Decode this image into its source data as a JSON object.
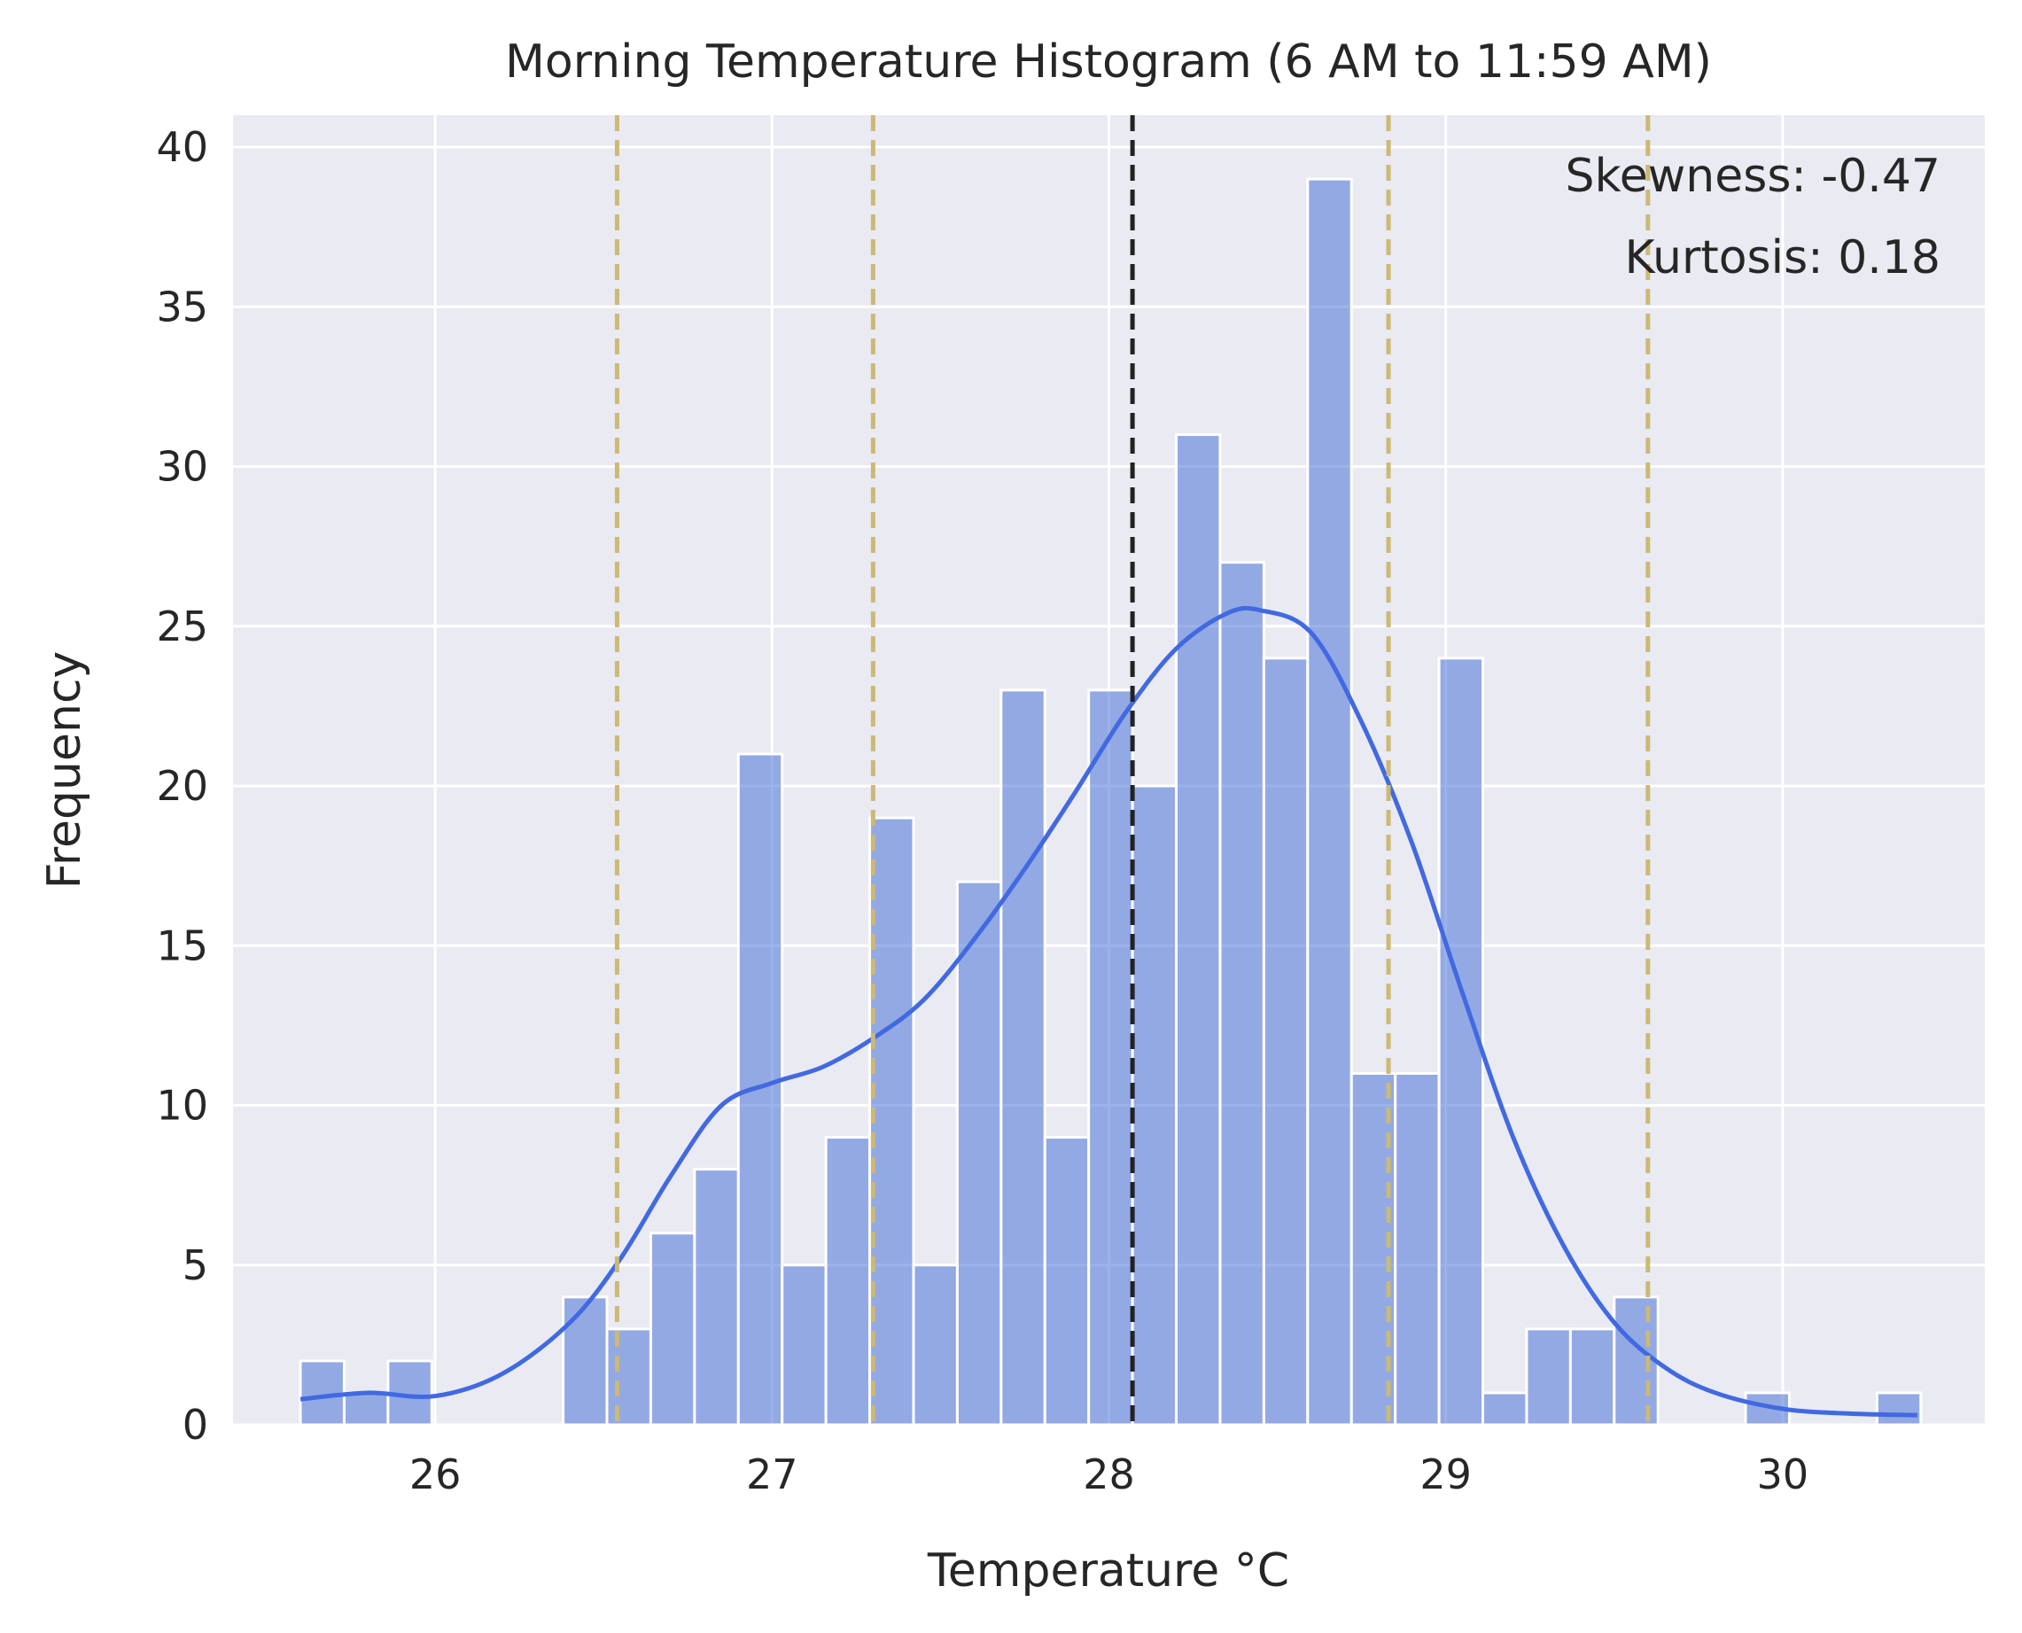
{
  "chart_data": {
    "type": "histogram",
    "title": "Morning Temperature Histogram (6 AM to 11:59 AM)",
    "xlabel": "Temperature °C",
    "ylabel": "Frequency",
    "xlim": [
      25.4,
      30.6
    ],
    "ylim": [
      0,
      41
    ],
    "xticks": [
      26,
      27,
      28,
      29,
      30
    ],
    "yticks": [
      0,
      5,
      10,
      15,
      20,
      25,
      30,
      35,
      40
    ],
    "grid": true,
    "bin_width": 0.13,
    "bins": [
      {
        "start": 25.6,
        "count": 2
      },
      {
        "start": 25.73,
        "count": 1
      },
      {
        "start": 25.86,
        "count": 2
      },
      {
        "start": 25.99,
        "count": 0
      },
      {
        "start": 26.12,
        "count": 0
      },
      {
        "start": 26.25,
        "count": 0
      },
      {
        "start": 26.38,
        "count": 4
      },
      {
        "start": 26.51,
        "count": 3
      },
      {
        "start": 26.64,
        "count": 6
      },
      {
        "start": 26.77,
        "count": 8
      },
      {
        "start": 26.9,
        "count": 21
      },
      {
        "start": 27.03,
        "count": 5
      },
      {
        "start": 27.16,
        "count": 9
      },
      {
        "start": 27.29,
        "count": 19
      },
      {
        "start": 27.42,
        "count": 5
      },
      {
        "start": 27.55,
        "count": 17
      },
      {
        "start": 27.68,
        "count": 23
      },
      {
        "start": 27.81,
        "count": 9
      },
      {
        "start": 27.94,
        "count": 23
      },
      {
        "start": 28.07,
        "count": 20
      },
      {
        "start": 28.2,
        "count": 31
      },
      {
        "start": 28.33,
        "count": 27
      },
      {
        "start": 28.46,
        "count": 24
      },
      {
        "start": 28.59,
        "count": 39
      },
      {
        "start": 28.72,
        "count": 11
      },
      {
        "start": 28.85,
        "count": 11
      },
      {
        "start": 28.98,
        "count": 24
      },
      {
        "start": 29.11,
        "count": 1
      },
      {
        "start": 29.24,
        "count": 3
      },
      {
        "start": 29.37,
        "count": 3
      },
      {
        "start": 29.5,
        "count": 4
      },
      {
        "start": 29.63,
        "count": 0
      },
      {
        "start": 29.76,
        "count": 0
      },
      {
        "start": 29.89,
        "count": 1
      },
      {
        "start": 30.02,
        "count": 0
      },
      {
        "start": 30.15,
        "count": 0
      },
      {
        "start": 30.28,
        "count": 1
      }
    ],
    "kde_curve": {
      "x": [
        25.6,
        25.8,
        26.0,
        26.2,
        26.4,
        26.55,
        26.7,
        26.85,
        27.0,
        27.15,
        27.3,
        27.45,
        27.6,
        27.75,
        27.9,
        28.05,
        28.2,
        28.35,
        28.45,
        28.6,
        28.75,
        28.9,
        29.05,
        29.2,
        29.35,
        29.5,
        29.65,
        29.8,
        30.0,
        30.2,
        30.4
      ],
      "y": [
        0.8,
        1.0,
        0.9,
        1.6,
        3.2,
        5.2,
        7.8,
        10.0,
        10.7,
        11.2,
        12.1,
        13.3,
        15.2,
        17.4,
        19.8,
        22.3,
        24.3,
        25.4,
        25.5,
        24.8,
        22.0,
        18.2,
        13.5,
        9.0,
        5.6,
        3.2,
        1.8,
        1.0,
        0.5,
        0.35,
        0.3
      ]
    },
    "vlines": [
      {
        "x": 28.07,
        "style": "dashed",
        "color": "#222222"
      },
      {
        "x": 26.54,
        "style": "dashed",
        "color": "#ccb974"
      },
      {
        "x": 27.3,
        "style": "dashed",
        "color": "#ccb974"
      },
      {
        "x": 28.83,
        "style": "dashed",
        "color": "#ccb974"
      },
      {
        "x": 29.6,
        "style": "dashed",
        "color": "#ccb974"
      }
    ],
    "annotations": [
      "Skewness: -0.47",
      "Kurtosis: 0.18"
    ],
    "annotation_placement": "top-right",
    "colors": {
      "bar_fill": "#4a72d9",
      "curve": "#4169e1",
      "plot_bg": "#eaeaf2",
      "grid": "#ffffff"
    }
  }
}
